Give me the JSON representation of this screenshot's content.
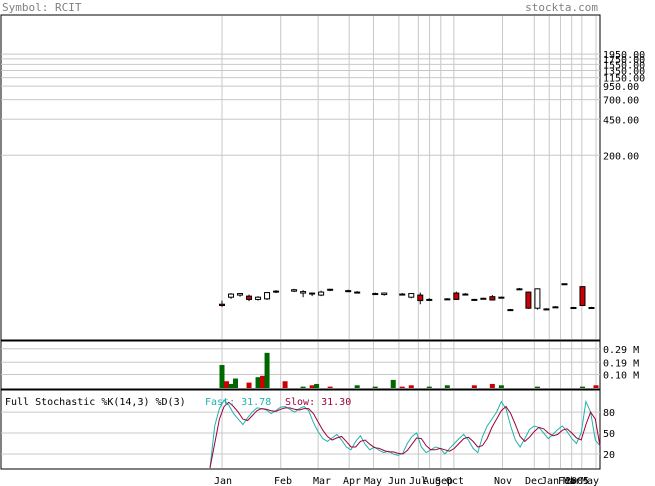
{
  "header": {
    "symbol_label": "Symbol: RCIT",
    "site": "stockta.com"
  },
  "colors": {
    "background": "#ffffff",
    "header_text": "#808080",
    "frame": "#000000",
    "grid": "#c8c8c8",
    "up_candle": "#ffffff",
    "down_candle": "#cc0000",
    "up_volume": "#006600",
    "down_volume": "#cc0000",
    "fast_line": "#20b2aa",
    "slow_line": "#a0003c"
  },
  "chart_data": [
    {
      "type": "candlestick",
      "title": "",
      "y_scale": "log",
      "price_tick_labels": [
        "200.00",
        "450.00",
        "700.00"
      ],
      "price_ticks": [
        200,
        450,
        700
      ],
      "dense_upper_ticks": [
        950,
        1150,
        1350,
        1550,
        1750,
        1950
      ],
      "x_tick_labels": [
        "Jan",
        "Feb",
        "Mar",
        "Apr",
        "May",
        "Jun",
        "Jul",
        "Aug",
        "Sep",
        "Oct",
        "Nov",
        "Dec",
        "Jan",
        "Feb",
        "Mar",
        "2005",
        "May"
      ],
      "candles": [
        {
          "d": 0,
          "o": 7.0,
          "h": 7.6,
          "l": 6.6,
          "c": 6.8
        },
        {
          "d": 2,
          "o": 8.2,
          "h": 9.0,
          "l": 7.9,
          "c": 8.8
        },
        {
          "d": 4,
          "o": 8.6,
          "h": 9.0,
          "l": 8.3,
          "c": 8.9
        },
        {
          "d": 6,
          "o": 8.4,
          "h": 8.7,
          "l": 7.5,
          "c": 7.8
        },
        {
          "d": 8,
          "o": 7.8,
          "h": 8.4,
          "l": 7.6,
          "c": 8.2
        },
        {
          "d": 10,
          "o": 7.9,
          "h": 9.2,
          "l": 7.7,
          "c": 9.1
        },
        {
          "d": 12,
          "o": 9.2,
          "h": 9.6,
          "l": 9.0,
          "c": 9.4
        },
        {
          "d": 16,
          "o": 9.4,
          "h": 9.9,
          "l": 9.2,
          "c": 9.7
        },
        {
          "d": 18,
          "o": 9.0,
          "h": 9.6,
          "l": 8.2,
          "c": 9.3
        },
        {
          "d": 20,
          "o": 8.8,
          "h": 9.1,
          "l": 8.4,
          "c": 9.0
        },
        {
          "d": 22,
          "o": 8.6,
          "h": 9.5,
          "l": 8.4,
          "c": 9.2
        },
        {
          "d": 24,
          "o": 9.6,
          "h": 9.9,
          "l": 9.4,
          "c": 9.8
        },
        {
          "d": 28,
          "o": 9.4,
          "h": 9.7,
          "l": 9.2,
          "c": 9.5
        },
        {
          "d": 30,
          "o": 9.2,
          "h": 9.4,
          "l": 9.0,
          "c": 9.2
        },
        {
          "d": 34,
          "o": 8.9,
          "h": 9.1,
          "l": 8.7,
          "c": 8.9
        },
        {
          "d": 36,
          "o": 8.7,
          "h": 9.1,
          "l": 8.5,
          "c": 9.0
        },
        {
          "d": 40,
          "o": 8.8,
          "h": 9.0,
          "l": 8.6,
          "c": 8.8
        },
        {
          "d": 42,
          "o": 8.2,
          "h": 9.0,
          "l": 8.0,
          "c": 8.9
        },
        {
          "d": 44,
          "o": 8.6,
          "h": 9.1,
          "l": 7.0,
          "c": 7.6
        },
        {
          "d": 46,
          "o": 7.8,
          "h": 8.0,
          "l": 7.6,
          "c": 7.7
        },
        {
          "d": 50,
          "o": 7.9,
          "h": 8.0,
          "l": 7.8,
          "c": 7.9
        },
        {
          "d": 52,
          "o": 9.0,
          "h": 9.3,
          "l": 7.7,
          "c": 7.8
        },
        {
          "d": 54,
          "o": 8.8,
          "h": 9.0,
          "l": 8.6,
          "c": 8.8
        },
        {
          "d": 56,
          "o": 7.8,
          "h": 7.9,
          "l": 7.6,
          "c": 7.7
        },
        {
          "d": 58,
          "o": 8.0,
          "h": 8.1,
          "l": 7.9,
          "c": 8.0
        },
        {
          "d": 60,
          "o": 8.3,
          "h": 8.6,
          "l": 7.6,
          "c": 7.7
        },
        {
          "d": 62,
          "o": 8.2,
          "h": 8.3,
          "l": 8.0,
          "c": 8.1
        },
        {
          "d": 64,
          "o": 6.2,
          "h": 6.3,
          "l": 6.1,
          "c": 6.2
        },
        {
          "d": 66,
          "o": 9.9,
          "h": 10.1,
          "l": 9.8,
          "c": 9.9
        },
        {
          "d": 68,
          "o": 9.2,
          "h": 9.3,
          "l": 6.3,
          "c": 6.4
        },
        {
          "d": 70,
          "o": 6.4,
          "h": 10.0,
          "l": 6.2,
          "c": 9.9
        },
        {
          "d": 72,
          "o": 6.3,
          "h": 6.4,
          "l": 6.2,
          "c": 6.3
        },
        {
          "d": 74,
          "o": 6.6,
          "h": 6.7,
          "l": 6.5,
          "c": 6.6
        },
        {
          "d": 76,
          "o": 11.1,
          "h": 11.2,
          "l": 11.0,
          "c": 11.1
        },
        {
          "d": 78,
          "o": 6.5,
          "h": 6.6,
          "l": 6.4,
          "c": 6.5
        },
        {
          "d": 80,
          "o": 10.4,
          "h": 10.5,
          "l": 6.7,
          "c": 6.8
        },
        {
          "d": 82,
          "o": 6.5,
          "h": 6.6,
          "l": 6.4,
          "c": 6.5
        }
      ],
      "days_total": 84
    },
    {
      "type": "bar",
      "title": "Volume",
      "y_tick_labels": [
        "0.29 M",
        "0.19 M",
        "0.10 M"
      ],
      "y_ticks": [
        0.29,
        0.19,
        0.1
      ],
      "ylim": [
        0,
        0.34
      ],
      "volumes": [
        {
          "d": 0,
          "v": 0.17,
          "up": true
        },
        {
          "d": 1,
          "v": 0.05,
          "up": false
        },
        {
          "d": 2,
          "v": 0.03,
          "up": true
        },
        {
          "d": 3,
          "v": 0.07,
          "up": true
        },
        {
          "d": 6,
          "v": 0.04,
          "up": false
        },
        {
          "d": 8,
          "v": 0.08,
          "up": true
        },
        {
          "d": 9,
          "v": 0.09,
          "up": false
        },
        {
          "d": 10,
          "v": 0.26,
          "up": true
        },
        {
          "d": 14,
          "v": 0.05,
          "up": false
        },
        {
          "d": 18,
          "v": 0.01,
          "up": true
        },
        {
          "d": 20,
          "v": 0.02,
          "up": false
        },
        {
          "d": 21,
          "v": 0.03,
          "up": true
        },
        {
          "d": 24,
          "v": 0.01,
          "up": false
        },
        {
          "d": 30,
          "v": 0.02,
          "up": true
        },
        {
          "d": 34,
          "v": 0.01,
          "up": true
        },
        {
          "d": 38,
          "v": 0.06,
          "up": true
        },
        {
          "d": 40,
          "v": 0.01,
          "up": false
        },
        {
          "d": 42,
          "v": 0.02,
          "up": false
        },
        {
          "d": 46,
          "v": 0.01,
          "up": true
        },
        {
          "d": 50,
          "v": 0.02,
          "up": true
        },
        {
          "d": 56,
          "v": 0.02,
          "up": false
        },
        {
          "d": 60,
          "v": 0.03,
          "up": false
        },
        {
          "d": 62,
          "v": 0.02,
          "up": true
        },
        {
          "d": 70,
          "v": 0.01,
          "up": true
        },
        {
          "d": 80,
          "v": 0.01,
          "up": true
        },
        {
          "d": 83,
          "v": 0.02,
          "up": false
        }
      ]
    },
    {
      "type": "line",
      "title": "Full Stochastic %K(14,3) %D(3)",
      "fast_label": "Fast: 31.78",
      "slow_label": "Slow: 31.30",
      "y_tick_labels": [
        "80",
        "50",
        "20"
      ],
      "y_ticks": [
        80,
        50,
        20
      ],
      "ylim": [
        0,
        100
      ],
      "series": [
        {
          "name": "Fast",
          "values": [
            0,
            60,
            85,
            97,
            90,
            78,
            70,
            62,
            72,
            80,
            86,
            85,
            83,
            78,
            82,
            87,
            88,
            84,
            80,
            85,
            88,
            82,
            65,
            52,
            42,
            38,
            43,
            48,
            40,
            30,
            26,
            38,
            46,
            34,
            26,
            30,
            25,
            22,
            24,
            20,
            18,
            21,
            35,
            45,
            50,
            30,
            22,
            26,
            30,
            28,
            20,
            28,
            35,
            42,
            48,
            40,
            28,
            22,
            45,
            60,
            70,
            80,
            95,
            85,
            60,
            40,
            30,
            42,
            55,
            60,
            58,
            50,
            42,
            48,
            55,
            60,
            52,
            42,
            35,
            50,
            95,
            80,
            40,
            31.78
          ]
        },
        {
          "name": "Slow",
          "values": [
            0,
            35,
            70,
            88,
            94,
            88,
            80,
            70,
            68,
            75,
            82,
            85,
            84,
            82,
            81,
            84,
            86,
            86,
            84,
            83,
            85,
            85,
            78,
            66,
            54,
            45,
            40,
            43,
            45,
            38,
            30,
            30,
            38,
            40,
            34,
            29,
            28,
            25,
            23,
            23,
            21,
            20,
            25,
            34,
            43,
            42,
            32,
            26,
            26,
            28,
            26,
            24,
            28,
            35,
            42,
            44,
            38,
            30,
            32,
            42,
            58,
            70,
            82,
            88,
            78,
            62,
            45,
            38,
            44,
            52,
            58,
            56,
            50,
            46,
            48,
            54,
            56,
            50,
            43,
            40,
            62,
            80,
            70,
            31.3
          ]
        }
      ]
    }
  ]
}
